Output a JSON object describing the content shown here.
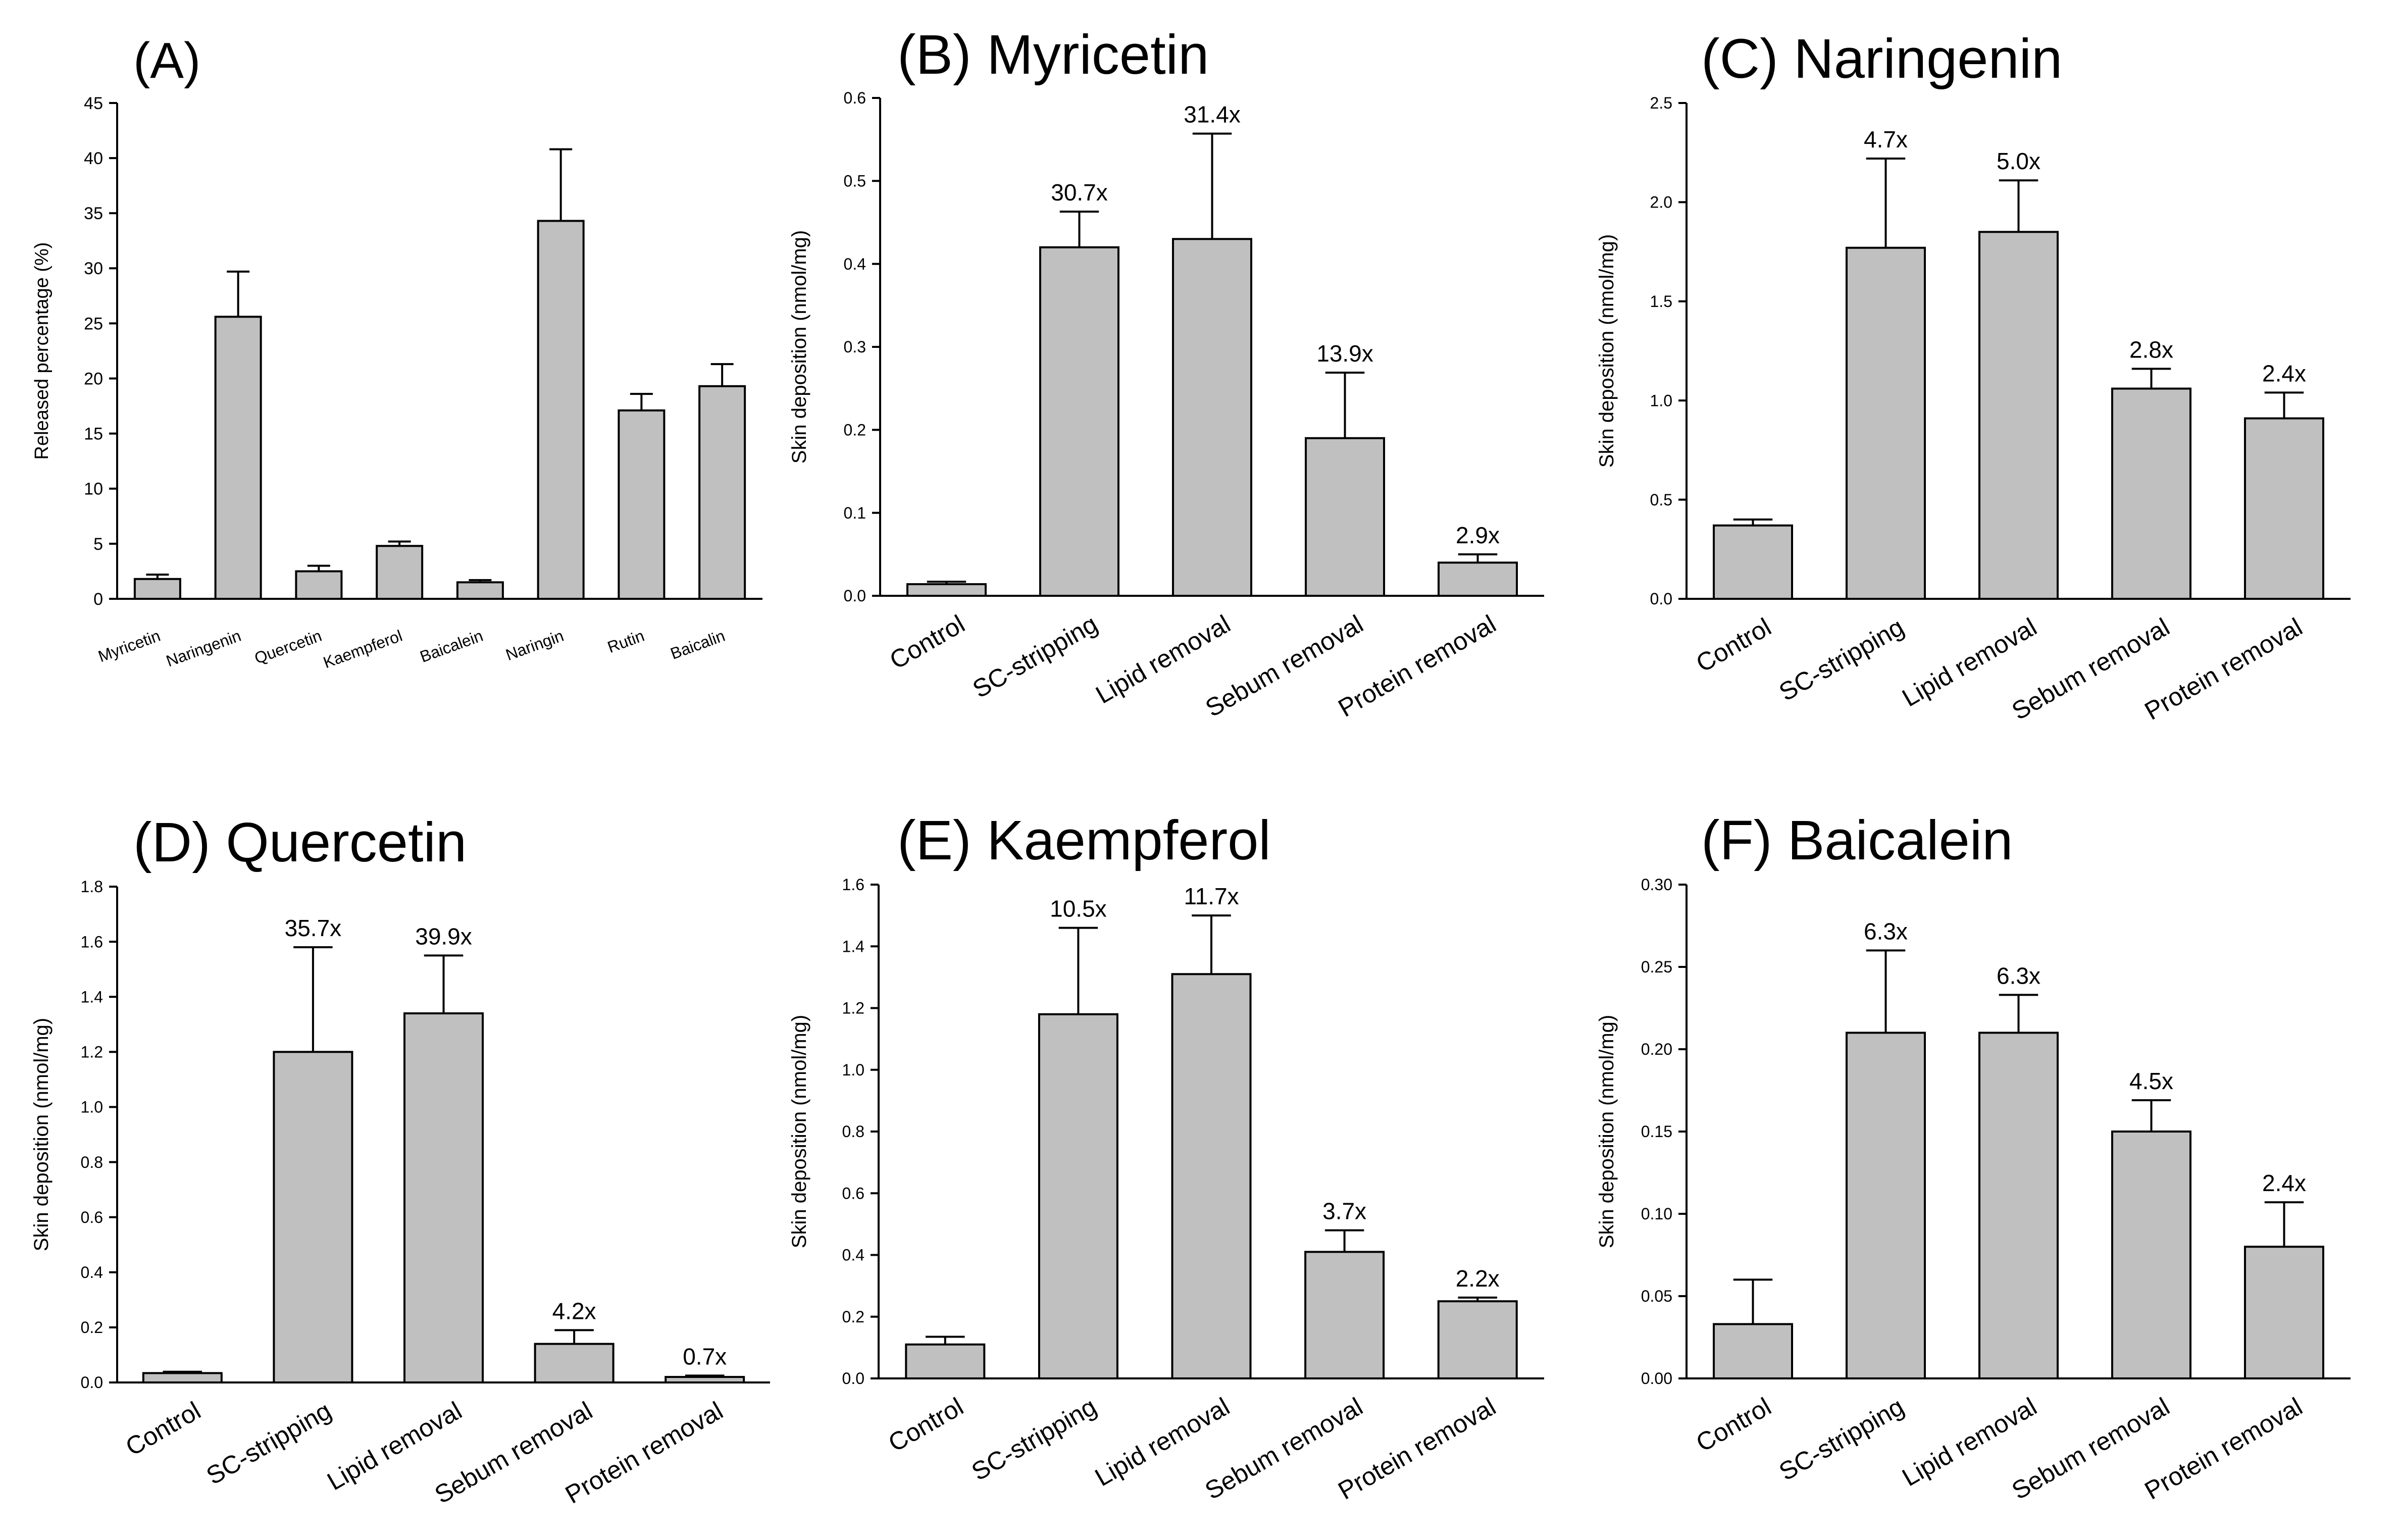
{
  "colors": {
    "bar_fill": "#c0c0c0",
    "bar_stroke": "#000000",
    "axis": "#000000"
  },
  "chart_data": [
    {
      "id": "A",
      "type": "bar",
      "title": "(A)",
      "ylabel": "Released percentage (%)",
      "xlabel": "",
      "ylim": [
        0,
        45
      ],
      "yticks": [
        0,
        5,
        10,
        15,
        20,
        25,
        30,
        35,
        40,
        45
      ],
      "ytick_labels": [
        "0",
        "5",
        "10",
        "15",
        "20",
        "25",
        "30",
        "35",
        "40",
        "45"
      ],
      "categories": [
        "Myricetin",
        "Naringenin",
        "Quercetin",
        "Kaempferol",
        "Baicalein",
        "Naringin",
        "Rutin",
        "Baicalin"
      ],
      "values": [
        1.8,
        25.6,
        2.5,
        4.8,
        1.5,
        34.3,
        17.1,
        19.3
      ],
      "errors": [
        0.4,
        4.1,
        0.5,
        0.4,
        0.2,
        6.5,
        1.5,
        2.0
      ],
      "annotations": []
    },
    {
      "id": "B",
      "type": "bar",
      "title": "(B) Myricetin",
      "ylabel": "Skin deposition (nmol/mg)",
      "xlabel": "",
      "ylim": [
        0,
        0.6
      ],
      "yticks": [
        0,
        0.1,
        0.2,
        0.3,
        0.4,
        0.5,
        0.6
      ],
      "ytick_labels": [
        "0.0",
        "0.1",
        "0.2",
        "0.3",
        "0.4",
        "0.5",
        "0.6"
      ],
      "categories": [
        "Control",
        "SC-stripping",
        "Lipid removal",
        "Sebum removal",
        "Protein removal"
      ],
      "values": [
        0.014,
        0.42,
        0.43,
        0.19,
        0.04
      ],
      "errors": [
        0.003,
        0.043,
        0.127,
        0.079,
        0.01
      ],
      "annotations": [
        "",
        "30.7x",
        "31.4x",
        "13.9x",
        "2.9x"
      ]
    },
    {
      "id": "C",
      "type": "bar",
      "title": "(C) Naringenin",
      "ylabel": "Skin deposition (nmol/mg)",
      "xlabel": "",
      "ylim": [
        0,
        2.5
      ],
      "yticks": [
        0,
        0.5,
        1.0,
        1.5,
        2.0,
        2.5
      ],
      "ytick_labels": [
        "0.0",
        "0.5",
        "1.0",
        "1.5",
        "2.0",
        "2.5"
      ],
      "categories": [
        "Control",
        "SC-stripping",
        "Lipid removal",
        "Sebum removal",
        "Protein removal"
      ],
      "values": [
        0.37,
        1.77,
        1.85,
        1.06,
        0.91
      ],
      "errors": [
        0.03,
        0.45,
        0.26,
        0.1,
        0.13
      ],
      "annotations": [
        "",
        "4.7x",
        "5.0x",
        "2.8x",
        "2.4x"
      ]
    },
    {
      "id": "D",
      "type": "bar",
      "title": "(D) Quercetin",
      "ylabel": "Skin deposition (nmol/mg)",
      "xlabel": "",
      "ylim": [
        0,
        1.8
      ],
      "yticks": [
        0,
        0.2,
        0.4,
        0.6,
        0.8,
        1.0,
        1.2,
        1.4,
        1.6,
        1.8
      ],
      "ytick_labels": [
        "0.0",
        "0.2",
        "0.4",
        "0.6",
        "0.8",
        "1.0",
        "1.2",
        "1.4",
        "1.6",
        "1.8"
      ],
      "categories": [
        "Control",
        "SC-stripping",
        "Lipid removal",
        "Sebum removal",
        "Protein removal"
      ],
      "values": [
        0.034,
        1.2,
        1.34,
        0.14,
        0.02
      ],
      "errors": [
        0.005,
        0.38,
        0.21,
        0.05,
        0.005
      ],
      "annotations": [
        "",
        "35.7x",
        "39.9x",
        "4.2x",
        "0.7x"
      ]
    },
    {
      "id": "E",
      "type": "bar",
      "title": "(E) Kaempferol",
      "ylabel": "Skin deposition (nmol/mg)",
      "xlabel": "",
      "ylim": [
        0,
        1.6
      ],
      "yticks": [
        0,
        0.2,
        0.4,
        0.6,
        0.8,
        1.0,
        1.2,
        1.4,
        1.6
      ],
      "ytick_labels": [
        "0.0",
        "0.2",
        "0.4",
        "0.6",
        "0.8",
        "1.0",
        "1.2",
        "1.4",
        "1.6"
      ],
      "categories": [
        "Control",
        "SC-stripping",
        "Lipid removal",
        "Sebum removal",
        "Protein removal"
      ],
      "values": [
        0.11,
        1.18,
        1.31,
        0.41,
        0.25
      ],
      "errors": [
        0.025,
        0.28,
        0.19,
        0.07,
        0.012
      ],
      "annotations": [
        "",
        "10.5x",
        "11.7x",
        "3.7x",
        "2.2x"
      ]
    },
    {
      "id": "F",
      "type": "bar",
      "title": "(F) Baicalein",
      "ylabel": "Skin deposition (nmol/mg)",
      "xlabel": "",
      "ylim": [
        0,
        0.3
      ],
      "yticks": [
        0,
        0.05,
        0.1,
        0.15,
        0.2,
        0.25,
        0.3
      ],
      "ytick_labels": [
        "0.00",
        "0.05",
        "0.10",
        "0.15",
        "0.20",
        "0.25",
        "0.30"
      ],
      "categories": [
        "Control",
        "SC-stripping",
        "Lipid removal",
        "Sebum removal",
        "Protein removal"
      ],
      "values": [
        0.033,
        0.21,
        0.21,
        0.15,
        0.08
      ],
      "errors": [
        0.027,
        0.05,
        0.023,
        0.019,
        0.027
      ],
      "annotations": [
        "",
        "6.3x",
        "6.3x",
        "4.5x",
        "2.4x"
      ]
    }
  ]
}
